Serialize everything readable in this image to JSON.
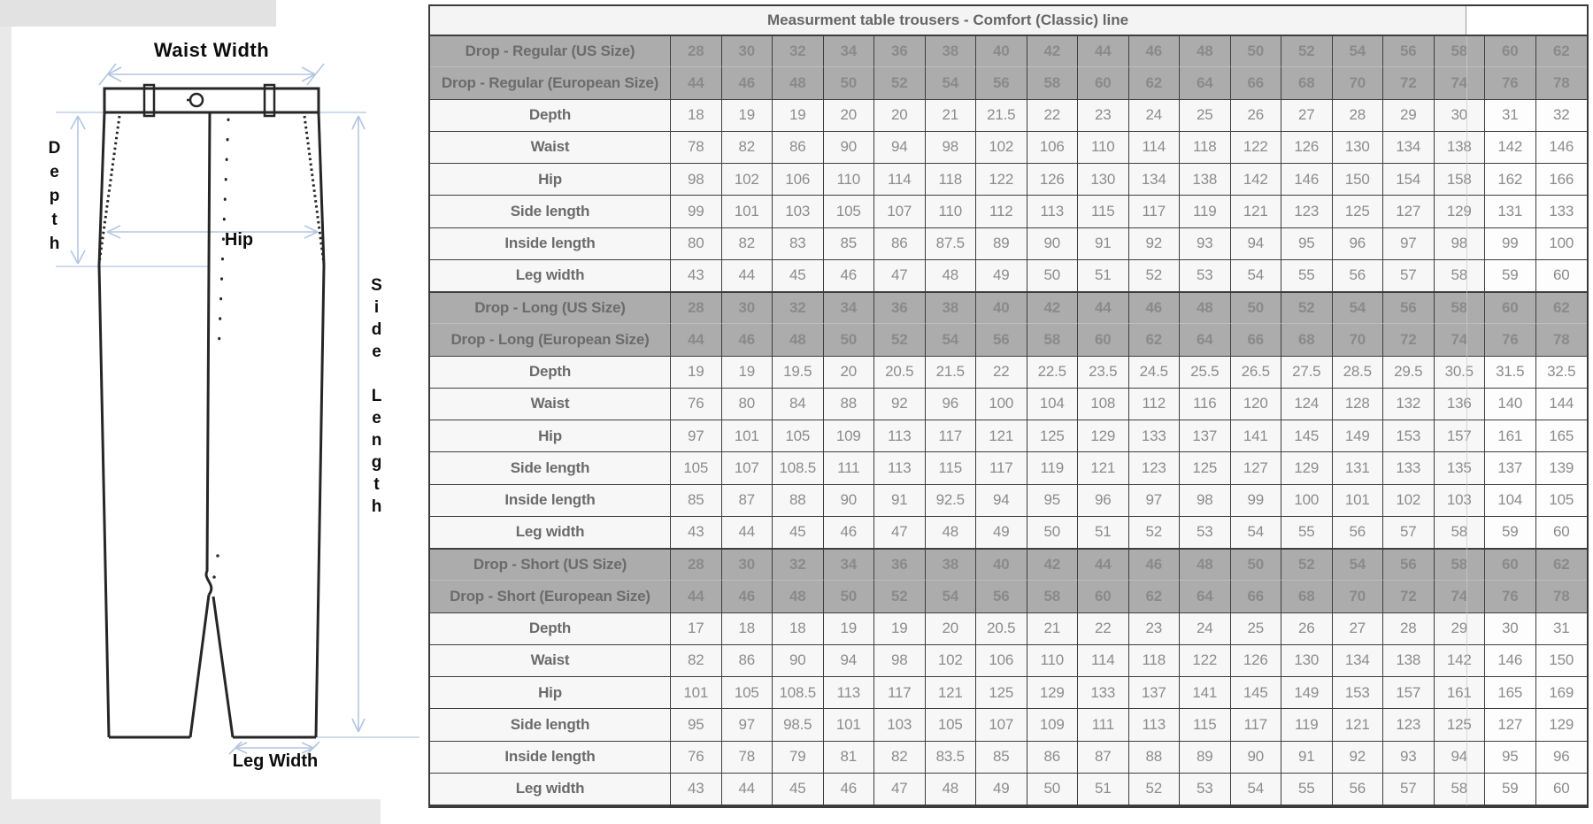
{
  "title": "Measurment table trousers - Comfort (Classic) line",
  "colors": {
    "accent_arrow": "#b2c6e2",
    "header_bg": "#acacac",
    "header_text": "#8a8a8a",
    "row_bg": "#f7f7f7",
    "label_text": "#6b6b6b",
    "value_text": "#8c8c8c",
    "border": "#3e3e3e",
    "title_text": "#666666"
  },
  "diagram": {
    "labels": {
      "waist_width": "Waist Width",
      "depth": "Depth",
      "hip": "Hip",
      "side_length": "Side Length",
      "leg_width": "Leg Width"
    }
  },
  "table": {
    "columns_count": 18,
    "sections": [
      {
        "key": "regular",
        "us_label": "Drop - Regular (US Size)",
        "eu_label": "Drop - Regular (European Size)",
        "us_sizes": [
          28,
          30,
          32,
          34,
          36,
          38,
          40,
          42,
          44,
          46,
          48,
          50,
          52,
          54,
          56,
          58,
          60,
          62
        ],
        "eu_sizes": [
          44,
          46,
          48,
          50,
          52,
          54,
          56,
          58,
          60,
          62,
          64,
          66,
          68,
          70,
          72,
          74,
          76,
          78
        ],
        "rows": [
          {
            "label": "Depth",
            "values": [
              18,
              19,
              19,
              20,
              20,
              21,
              21.5,
              22,
              23,
              24,
              25,
              26,
              27,
              28,
              29,
              30,
              31,
              32
            ]
          },
          {
            "label": "Waist",
            "values": [
              78,
              82,
              86,
              90,
              94,
              98,
              102,
              106,
              110,
              114,
              118,
              122,
              126,
              130,
              134,
              138,
              142,
              146
            ]
          },
          {
            "label": "Hip",
            "values": [
              98,
              102,
              106,
              110,
              114,
              118,
              122,
              126,
              130,
              134,
              138,
              142,
              146,
              150,
              154,
              158,
              162,
              166
            ]
          },
          {
            "label": "Side length",
            "values": [
              99,
              101,
              103,
              105,
              107,
              110,
              112,
              113,
              115,
              117,
              119,
              121,
              123,
              125,
              127,
              129,
              131,
              133
            ]
          },
          {
            "label": "Inside length",
            "values": [
              80,
              82,
              83,
              85,
              86,
              87.5,
              89,
              90,
              91,
              92,
              93,
              94,
              95,
              96,
              97,
              98,
              99,
              100
            ]
          },
          {
            "label": "Leg width",
            "values": [
              43,
              44,
              45,
              46,
              47,
              48,
              49,
              50,
              51,
              52,
              53,
              54,
              55,
              56,
              57,
              58,
              59,
              60
            ]
          }
        ]
      },
      {
        "key": "long",
        "us_label": "Drop - Long (US Size)",
        "eu_label": "Drop - Long (European Size)",
        "us_sizes": [
          28,
          30,
          32,
          34,
          36,
          38,
          40,
          42,
          44,
          46,
          48,
          50,
          52,
          54,
          56,
          58,
          60,
          62
        ],
        "eu_sizes": [
          44,
          46,
          48,
          50,
          52,
          54,
          56,
          58,
          60,
          62,
          64,
          66,
          68,
          70,
          72,
          74,
          76,
          78
        ],
        "rows": [
          {
            "label": "Depth",
            "values": [
              19,
              19,
              19.5,
              20,
              20.5,
              21.5,
              22,
              22.5,
              23.5,
              24.5,
              25.5,
              26.5,
              27.5,
              28.5,
              29.5,
              30.5,
              31.5,
              32.5
            ]
          },
          {
            "label": "Waist",
            "values": [
              76,
              80,
              84,
              88,
              92,
              96,
              100,
              104,
              108,
              112,
              116,
              120,
              124,
              128,
              132,
              136,
              140,
              144
            ]
          },
          {
            "label": "Hip",
            "values": [
              97,
              101,
              105,
              109,
              113,
              117,
              121,
              125,
              129,
              133,
              137,
              141,
              145,
              149,
              153,
              157,
              161,
              165
            ]
          },
          {
            "label": "Side length",
            "values": [
              105,
              107,
              108.5,
              111,
              113,
              115,
              117,
              119,
              121,
              123,
              125,
              127,
              129,
              131,
              133,
              135,
              137,
              139
            ]
          },
          {
            "label": "Inside length",
            "values": [
              85,
              87,
              88,
              90,
              91,
              92.5,
              94,
              95,
              96,
              97,
              98,
              99,
              100,
              101,
              102,
              103,
              104,
              105
            ]
          },
          {
            "label": "Leg width",
            "values": [
              43,
              44,
              45,
              46,
              47,
              48,
              49,
              50,
              51,
              52,
              53,
              54,
              55,
              56,
              57,
              58,
              59,
              60
            ]
          }
        ]
      },
      {
        "key": "short",
        "us_label": "Drop - Short (US Size)",
        "eu_label": "Drop - Short (European Size)",
        "us_sizes": [
          28,
          30,
          32,
          34,
          36,
          38,
          40,
          42,
          44,
          46,
          48,
          50,
          52,
          54,
          56,
          58,
          60,
          62
        ],
        "eu_sizes": [
          44,
          46,
          48,
          50,
          52,
          54,
          56,
          58,
          60,
          62,
          64,
          66,
          68,
          70,
          72,
          74,
          76,
          78
        ],
        "rows": [
          {
            "label": "Depth",
            "values": [
              17,
              18,
              18,
              19,
              19,
              20,
              20.5,
              21,
              22,
              23,
              24,
              25,
              26,
              27,
              28,
              29,
              30,
              31
            ]
          },
          {
            "label": "Waist",
            "values": [
              82,
              86,
              90,
              94,
              98,
              102,
              106,
              110,
              114,
              118,
              122,
              126,
              130,
              134,
              138,
              142,
              146,
              150
            ]
          },
          {
            "label": "Hip",
            "values": [
              101,
              105,
              108.5,
              113,
              117,
              121,
              125,
              129,
              133,
              137,
              141,
              145,
              149,
              153,
              157,
              161,
              165,
              169
            ]
          },
          {
            "label": "Side length",
            "values": [
              95,
              97,
              98.5,
              101,
              103,
              105,
              107,
              109,
              111,
              113,
              115,
              117,
              119,
              121,
              123,
              125,
              127,
              129
            ]
          },
          {
            "label": "Inside length",
            "values": [
              76,
              78,
              79,
              81,
              82,
              83.5,
              85,
              86,
              87,
              88,
              89,
              90,
              91,
              92,
              93,
              94,
              95,
              96
            ]
          },
          {
            "label": "Leg width",
            "values": [
              43,
              44,
              45,
              46,
              47,
              48,
              49,
              50,
              51,
              52,
              53,
              54,
              55,
              56,
              57,
              58,
              59,
              60
            ]
          }
        ]
      }
    ]
  }
}
